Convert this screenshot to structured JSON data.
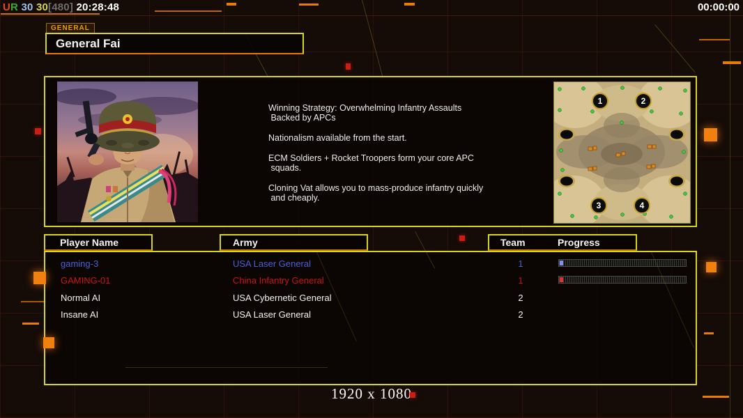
{
  "colors": {
    "accent_yellow": "#D8D61A",
    "accent_orange": "#E87E00",
    "blue_player": "#4A5FD8",
    "red_player": "#C81414",
    "white_text": "#F2F2F2"
  },
  "top_bar": {
    "gentool": {
      "u": "U",
      "r": "R",
      "fps": "30",
      "fps_cap": "30",
      "res_tag": "[480]",
      "clock": "20:28:48"
    },
    "match_timer": "00:00:00"
  },
  "general": {
    "tab_label": "GENERAL",
    "name": "General Fai"
  },
  "strategy": {
    "paragraphs": [
      {
        "line1": "Winning Strategy: Overwhelming Infantry Assaults",
        "line2": " Backed by APCs"
      },
      {
        "line1": "Nationalism available from the start.",
        "line2": ""
      },
      {
        "line1": "ECM Soldiers + Rocket Troopers form your core APC",
        "line2": " squads."
      },
      {
        "line1": "Cloning Vat allows you to mass-produce infantry quickly",
        "line2": " and cheaply."
      }
    ]
  },
  "minimap": {
    "positions": [
      "1",
      "2",
      "3",
      "4"
    ]
  },
  "table": {
    "headers": {
      "player": "Player Name",
      "army": "Army",
      "team": "Team",
      "progress": "Progress"
    },
    "rows": [
      {
        "name": "gaming-3",
        "army": "USA Laser General",
        "team": "1",
        "color": "#4A5FD8",
        "bar": true,
        "bar_color": "#7C90F0",
        "progress_pct": 3
      },
      {
        "name": "GAMING-01",
        "army": "China Infantry General",
        "team": "1",
        "color": "#C81414",
        "bar": true,
        "bar_color": "#E03030",
        "progress_pct": 3
      },
      {
        "name": "Normal AI",
        "army": "USA Cybernetic General",
        "team": "2",
        "color": "#F2F2F2",
        "bar": false
      },
      {
        "name": "Insane AI",
        "army": "USA Laser General",
        "team": "2",
        "color": "#F2F2F2",
        "bar": false
      }
    ]
  },
  "footer": {
    "resolution": "1920 x 1080"
  }
}
